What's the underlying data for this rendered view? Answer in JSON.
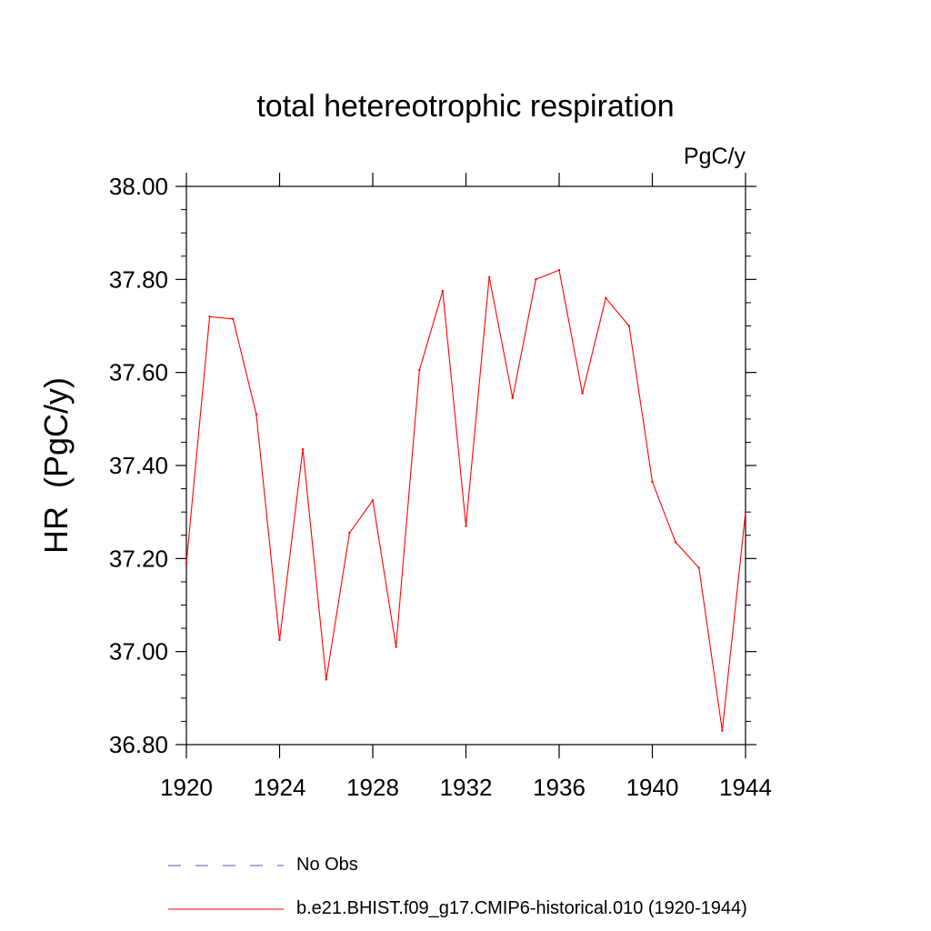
{
  "chart_data": {
    "type": "line",
    "title": "total hetereotrophic respiration",
    "units_label": "PgC/y",
    "ylabel": "HR  (PgC/y)",
    "xlabel": "",
    "xlim": [
      1920,
      1944
    ],
    "ylim": [
      36.8,
      38.0
    ],
    "x_ticks": [
      1920,
      1924,
      1928,
      1932,
      1936,
      1940,
      1944
    ],
    "x_tick_labels": [
      "1920",
      "1924",
      "1928",
      "1932",
      "1936",
      "1940",
      "1944"
    ],
    "y_ticks": [
      36.8,
      37.0,
      37.2,
      37.4,
      37.6,
      37.8,
      38.0
    ],
    "y_tick_labels": [
      "36.80",
      "37.00",
      "37.20",
      "37.40",
      "37.60",
      "37.80",
      "38.00"
    ],
    "grid": false,
    "legend_position": "bottom",
    "series": [
      {
        "name": "b.e21.BHIST.f09_g17.CMIP6-historical.010 (1920-1944)",
        "color": "#ff0000",
        "style": "solid",
        "x": [
          1920,
          1921,
          1922,
          1923,
          1924,
          1925,
          1926,
          1927,
          1928,
          1929,
          1930,
          1931,
          1932,
          1933,
          1934,
          1935,
          1936,
          1937,
          1938,
          1939,
          1940,
          1941,
          1942,
          1943,
          1944
        ],
        "values": [
          37.19,
          37.72,
          37.715,
          37.51,
          37.025,
          37.435,
          36.94,
          37.255,
          37.325,
          37.01,
          37.605,
          37.775,
          37.27,
          37.805,
          37.545,
          37.8,
          37.82,
          37.555,
          37.76,
          37.7,
          37.365,
          37.235,
          37.18,
          36.83,
          37.3
        ]
      }
    ],
    "legend_entries": [
      {
        "label": "No Obs",
        "color": "#5555aa",
        "style": "dashed"
      },
      {
        "label": "b.e21.BHIST.f09_g17.CMIP6-historical.010 (1920-1944)",
        "color": "#ff0000",
        "style": "solid"
      }
    ]
  }
}
